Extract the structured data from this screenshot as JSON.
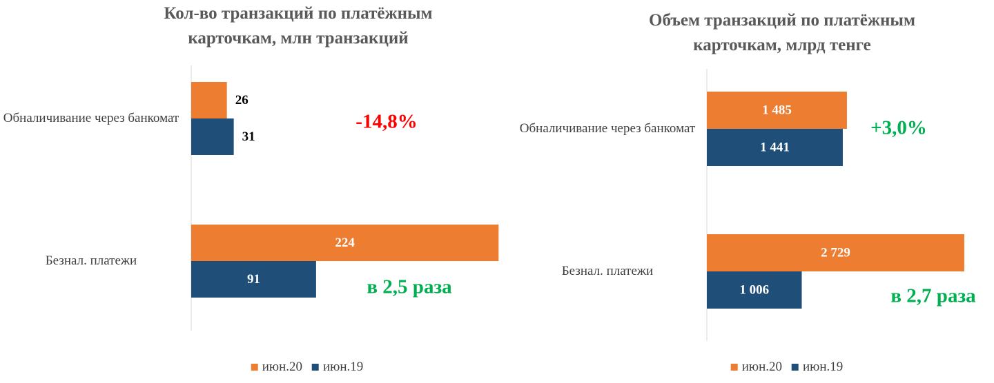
{
  "chart_data": [
    {
      "type": "bar",
      "orientation": "horizontal",
      "title": "Кол-во транзакций по платёжным карточкам, млн транзакций",
      "categories": [
        "Обналичивание через банкомат",
        "Безнал. платежи"
      ],
      "series": [
        {
          "name": "июн.20",
          "color": "#ed7d31",
          "values": [
            26,
            224
          ]
        },
        {
          "name": "июн.19",
          "color": "#1f4e79",
          "values": [
            31,
            91
          ]
        }
      ],
      "xlim": [
        0,
        250
      ],
      "annotations": [
        {
          "text": "-14,8%",
          "color": "#ff0000"
        },
        {
          "text": "в 2,5 раза",
          "color": "#00b050"
        }
      ],
      "legend": "bottom"
    },
    {
      "type": "bar",
      "orientation": "horizontal",
      "title": "Объем транзакций по платёжным карточкам, млрд тенге",
      "categories": [
        "Обналичивание через банкомат",
        "Безнал. платежи"
      ],
      "series": [
        {
          "name": "июн.20",
          "color": "#ed7d31",
          "values": [
            1485,
            2729
          ],
          "value_labels": [
            "1 485",
            "2 729"
          ]
        },
        {
          "name": "июн.19",
          "color": "#1f4e79",
          "values": [
            1441,
            1006
          ],
          "value_labels": [
            "1 441",
            "1 006"
          ]
        }
      ],
      "xlim": [
        0,
        3000
      ],
      "annotations": [
        {
          "text": "+3,0%",
          "color": "#00b050"
        },
        {
          "text": "в 2,7 раза",
          "color": "#00b050"
        }
      ],
      "legend": "bottom"
    }
  ]
}
